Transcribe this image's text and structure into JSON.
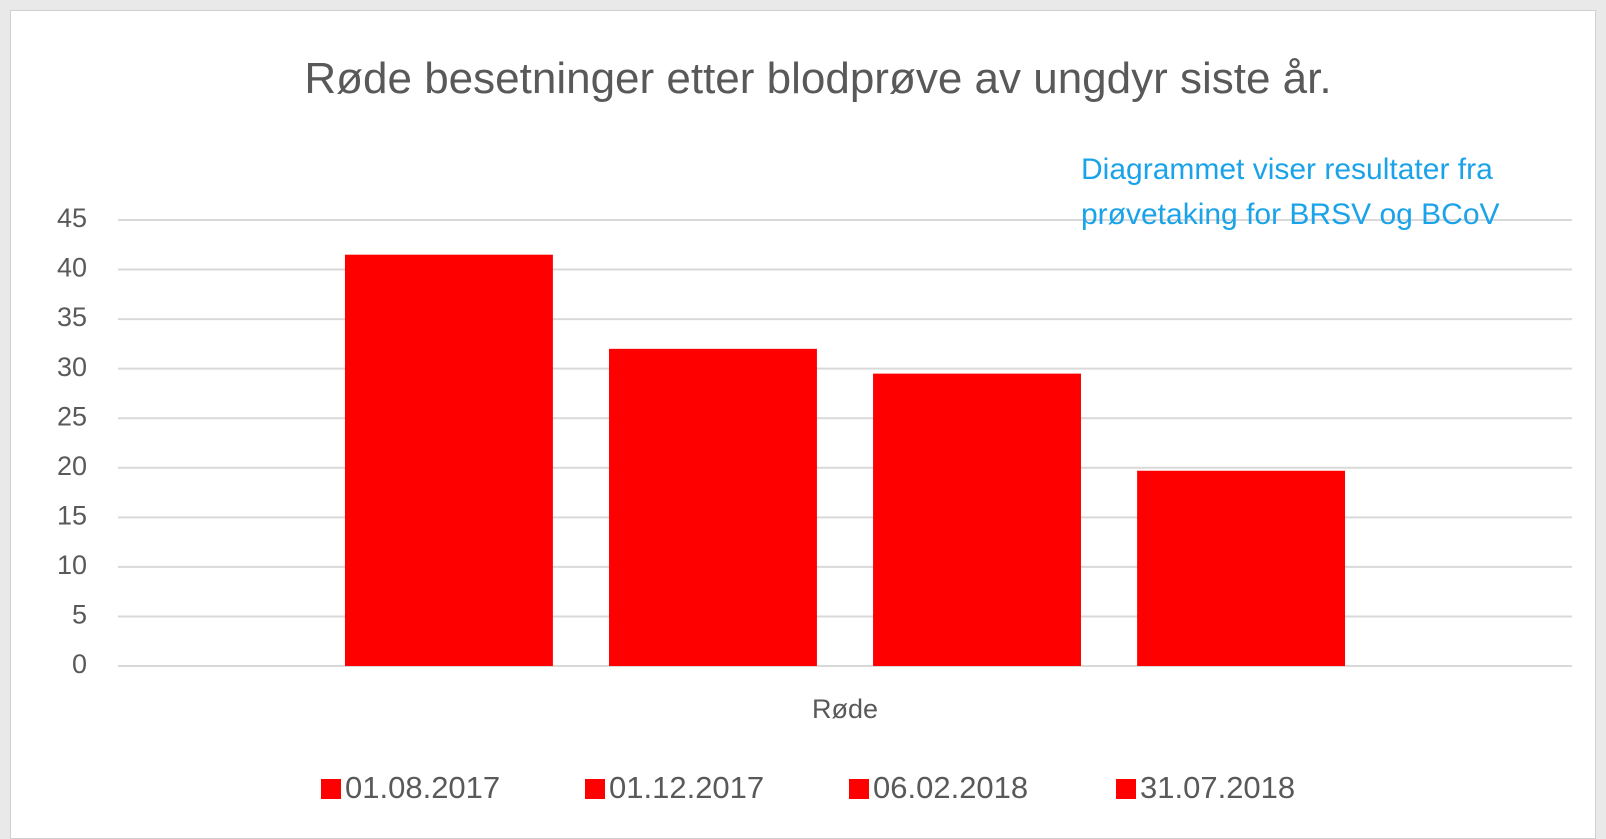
{
  "chart_data": {
    "type": "bar",
    "title": "Røde besetninger etter blodprøve  av ungdyr siste år.",
    "annotation": "Diagrammet viser resultater fra prøvetaking for BRSV og BCoV",
    "categories": [
      "Røde"
    ],
    "series": [
      {
        "name": "01.08.2017",
        "color": "#ff0000",
        "values": [
          41.5
        ]
      },
      {
        "name": "01.12.2017",
        "color": "#ff0000",
        "values": [
          32
        ]
      },
      {
        "name": "06.02.2018",
        "color": "#ff0000",
        "values": [
          29.5
        ]
      },
      {
        "name": "31.07.2018",
        "color": "#ff0000",
        "values": [
          19.7
        ]
      }
    ],
    "ylim": [
      0,
      45
    ],
    "yticks": [
      0,
      5,
      10,
      15,
      20,
      25,
      30,
      35,
      40,
      45
    ],
    "grid": true,
    "legend": "bottom"
  }
}
